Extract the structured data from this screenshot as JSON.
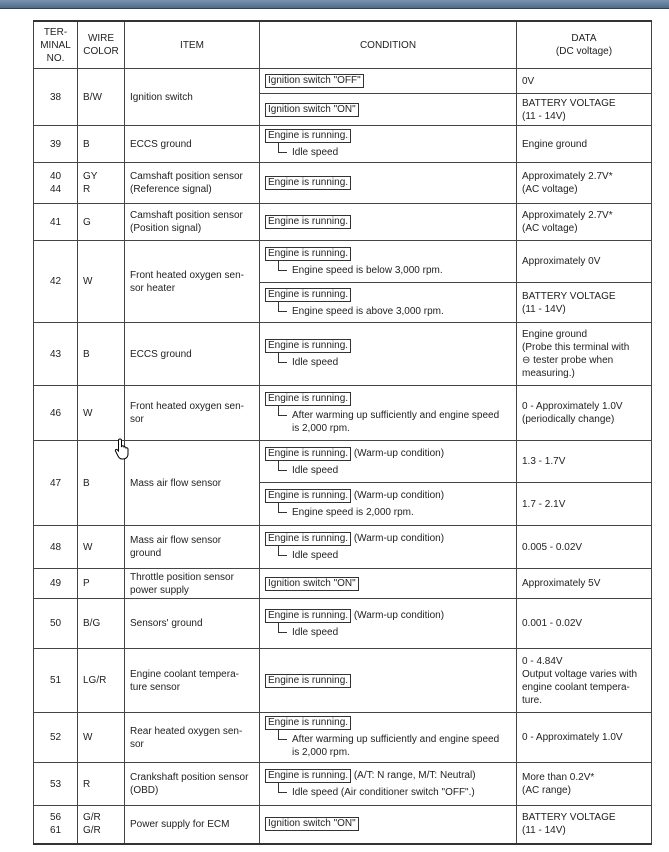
{
  "header": {
    "terminal": "TER-\nMINAL\nNO.",
    "wire": "WIRE\nCOLOR",
    "item": "ITEM",
    "condition": "CONDITION",
    "data": "DATA\n(DC voltage)"
  },
  "rows": [
    {
      "terminal": "38",
      "wire": "B/W",
      "item": "Ignition switch",
      "conditions": [
        {
          "box": "Ignition switch \"OFF\"",
          "data": "0V"
        },
        {
          "box": "Ignition switch \"ON\"",
          "data": "BATTERY VOLTAGE\n(11 - 14V)"
        }
      ]
    },
    {
      "terminal": "39",
      "wire": "B",
      "item": "ECCS ground",
      "conditions": [
        {
          "box": "Engine is running.",
          "sub": "Idle speed",
          "data": "Engine ground"
        }
      ]
    },
    {
      "terminal": "40\n44",
      "wire": "GY\nR",
      "item": "Camshaft position sensor\n(Reference signal)",
      "conditions": [
        {
          "box": "Engine is running.",
          "data": "Approximately 2.7V*\n(AC voltage)"
        }
      ]
    },
    {
      "terminal": "41",
      "wire": "G",
      "item": "Camshaft position sensor\n(Position signal)",
      "conditions": [
        {
          "box": "Engine is running.",
          "data": "Approximately 2.7V*\n(AC voltage)"
        }
      ]
    },
    {
      "terminal": "42",
      "wire": "W",
      "item": "Front heated oxygen sen-\nsor heater",
      "conditions": [
        {
          "box": "Engine is running.",
          "sub": "Engine speed is below 3,000 rpm.",
          "data": "Approximately 0V"
        },
        {
          "box": "Engine is running.",
          "sub": "Engine speed is above 3,000 rpm.",
          "data": "BATTERY VOLTAGE\n(11 - 14V)"
        }
      ]
    },
    {
      "terminal": "43",
      "wire": "B",
      "item": "ECCS ground",
      "conditions": [
        {
          "box": "Engine is running.",
          "sub": "Idle speed",
          "data": "Engine ground\n(Probe this terminal with\n⊖ tester probe when\nmeasuring.)"
        }
      ]
    },
    {
      "terminal": "46",
      "wire": "W",
      "item": "Front heated oxygen sen-\nsor",
      "conditions": [
        {
          "box": "Engine is running.",
          "sub": "After warming up sufficiently and engine speed\nis 2,000 rpm.",
          "data": "0 - Approximately 1.0V\n(periodically change)"
        }
      ]
    },
    {
      "terminal": "47",
      "wire": "B",
      "item": "Mass air flow sensor",
      "conditions": [
        {
          "box": "Engine is running.",
          "suffix": "(Warm-up condition)",
          "sub": "Idle speed",
          "data": "1.3 - 1.7V"
        },
        {
          "box": "Engine is running.",
          "suffix": "(Warm-up condition)",
          "sub": "Engine speed is 2,000 rpm.",
          "data": "1.7 - 2.1V"
        }
      ]
    },
    {
      "terminal": "48",
      "wire": "W",
      "item": "Mass air flow sensor\nground",
      "conditions": [
        {
          "box": "Engine is running.",
          "suffix": "(Warm-up condition)",
          "sub": "Idle speed",
          "data": "0.005 - 0.02V"
        }
      ]
    },
    {
      "terminal": "49",
      "wire": "P",
      "item": "Throttle position sensor\npower supply",
      "conditions": [
        {
          "box": "Ignition switch \"ON\"",
          "data": "Approximately 5V"
        }
      ]
    },
    {
      "terminal": "50",
      "wire": "B/G",
      "item": "Sensors' ground",
      "conditions": [
        {
          "box": "Engine is running.",
          "suffix": "(Warm-up condition)",
          "sub": "Idle speed",
          "data": "0.001 - 0.02V"
        }
      ]
    },
    {
      "terminal": "51",
      "wire": "LG/R",
      "item": "Engine coolant tempera-\nture sensor",
      "conditions": [
        {
          "box": "Engine is running.",
          "data": "0 - 4.84V\nOutput voltage varies with\nengine coolant tempera-\nture."
        }
      ]
    },
    {
      "terminal": "52",
      "wire": "W",
      "item": "Rear heated oxygen sen-\nsor",
      "conditions": [
        {
          "box": "Engine is running.",
          "sub": "After warming up sufficiently and engine speed\nis 2,000 rpm.",
          "data": "0 - Approximately 1.0V"
        }
      ]
    },
    {
      "terminal": "53",
      "wire": "R",
      "item": "Crankshaft position sensor\n(OBD)",
      "conditions": [
        {
          "box": "Engine is running.",
          "suffix": "(A/T: N range, M/T: Neutral)",
          "sub": "Idle speed (Air conditioner switch \"OFF\".)",
          "data": "More than 0.2V*\n(AC range)"
        }
      ]
    },
    {
      "terminal": "56\n61",
      "wire": "G/R\nG/R",
      "item": "Power supply for ECM",
      "conditions": [
        {
          "box": "Ignition switch \"ON\"",
          "data": "BATTERY VOLTAGE\n(11 - 14V)"
        }
      ]
    }
  ]
}
